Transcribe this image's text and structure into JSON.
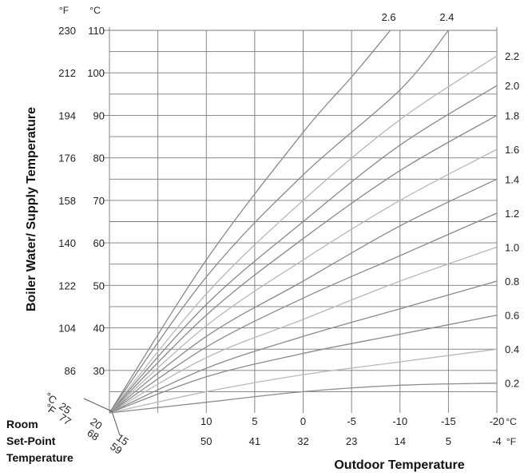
{
  "chart_data": {
    "type": "line",
    "title": "",
    "xlabel": "Outdoor Temperature",
    "ylabel": "Boiler Water/ Supply Temperature",
    "room_label_lines": [
      "Room",
      "Set-Point",
      "Temperature"
    ],
    "y_unit_f": "°F",
    "y_unit_c": "°C",
    "x_unit_c": "°C",
    "x_unit_f": "°F",
    "room_unit_c": "°C",
    "room_unit_f": "°F",
    "ylim": [
      20,
      110
    ],
    "xlim": [
      20,
      -20
    ],
    "y_ticks": [
      {
        "c": "110",
        "f": "230",
        "val": 110
      },
      {
        "c": "100",
        "f": "212",
        "val": 100
      },
      {
        "c": "90",
        "f": "194",
        "val": 90
      },
      {
        "c": "80",
        "f": "176",
        "val": 80
      },
      {
        "c": "70",
        "f": "158",
        "val": 70
      },
      {
        "c": "60",
        "f": "140",
        "val": 60
      },
      {
        "c": "50",
        "f": "122",
        "val": 50
      },
      {
        "c": "40",
        "f": "104",
        "val": 40
      },
      {
        "c": "30",
        "f": "86",
        "val": 30
      }
    ],
    "x_ticks": [
      {
        "c": "10",
        "f": "50",
        "val": 10
      },
      {
        "c": "5",
        "f": "41",
        "val": 5
      },
      {
        "c": "0",
        "f": "32",
        "val": 0
      },
      {
        "c": "-5",
        "f": "23",
        "val": -5
      },
      {
        "c": "-10",
        "f": "14",
        "val": -10
      },
      {
        "c": "-15",
        "f": "5",
        "val": -15
      },
      {
        "c": "-20",
        "f": "-4",
        "val": -20
      }
    ],
    "room_ticks": [
      {
        "c": "25",
        "f": "77"
      },
      {
        "c": "20",
        "f": "68"
      },
      {
        "c": "15",
        "f": "59"
      }
    ],
    "grid": true,
    "series": [
      {
        "name": "0.2",
        "x": [
          20,
          10,
          0,
          -10,
          -20
        ],
        "y": [
          20,
          22.5,
          25,
          26.5,
          27
        ]
      },
      {
        "name": "0.4",
        "x": [
          20,
          10,
          0,
          -10,
          -20
        ],
        "y": [
          20,
          25,
          29,
          32,
          35
        ]
      },
      {
        "name": "0.6",
        "x": [
          20,
          10,
          0,
          -10,
          -20
        ],
        "y": [
          20,
          28.5,
          34,
          38.5,
          43
        ]
      },
      {
        "name": "0.8",
        "x": [
          20,
          10,
          0,
          -10,
          -20
        ],
        "y": [
          20,
          30.5,
          38,
          44.5,
          51
        ]
      },
      {
        "name": "1.0",
        "x": [
          20,
          10,
          0,
          -10,
          -20
        ],
        "y": [
          20,
          33,
          42,
          51,
          59
        ]
      },
      {
        "name": "1.2",
        "x": [
          20,
          10,
          0,
          -10,
          -20
        ],
        "y": [
          20,
          35.5,
          47,
          57,
          67
        ]
      },
      {
        "name": "1.4",
        "x": [
          20,
          10,
          0,
          -10,
          -20
        ],
        "y": [
          20,
          38,
          51,
          64,
          75
        ]
      },
      {
        "name": "1.6",
        "x": [
          20,
          10,
          0,
          -10,
          -20
        ],
        "y": [
          20,
          40.5,
          56,
          70,
          82
        ]
      },
      {
        "name": "1.8",
        "x": [
          20,
          10,
          0,
          -10,
          -20
        ],
        "y": [
          20,
          43,
          61,
          77,
          90
        ]
      },
      {
        "name": "2.0",
        "x": [
          20,
          10,
          0,
          -10,
          -20
        ],
        "y": [
          20,
          45.5,
          65,
          83,
          97
        ]
      },
      {
        "name": "2.2",
        "x": [
          20,
          10,
          0,
          -10,
          -20
        ],
        "y": [
          20,
          48,
          70,
          89,
          104
        ]
      },
      {
        "name": "2.4",
        "x": [
          20,
          10,
          0,
          -10,
          -15
        ],
        "y": [
          20,
          52,
          76,
          96,
          110
        ]
      },
      {
        "name": "2.6",
        "x": [
          20,
          10,
          0,
          -5,
          -9
        ],
        "y": [
          20,
          56,
          86,
          99,
          110
        ]
      }
    ]
  }
}
